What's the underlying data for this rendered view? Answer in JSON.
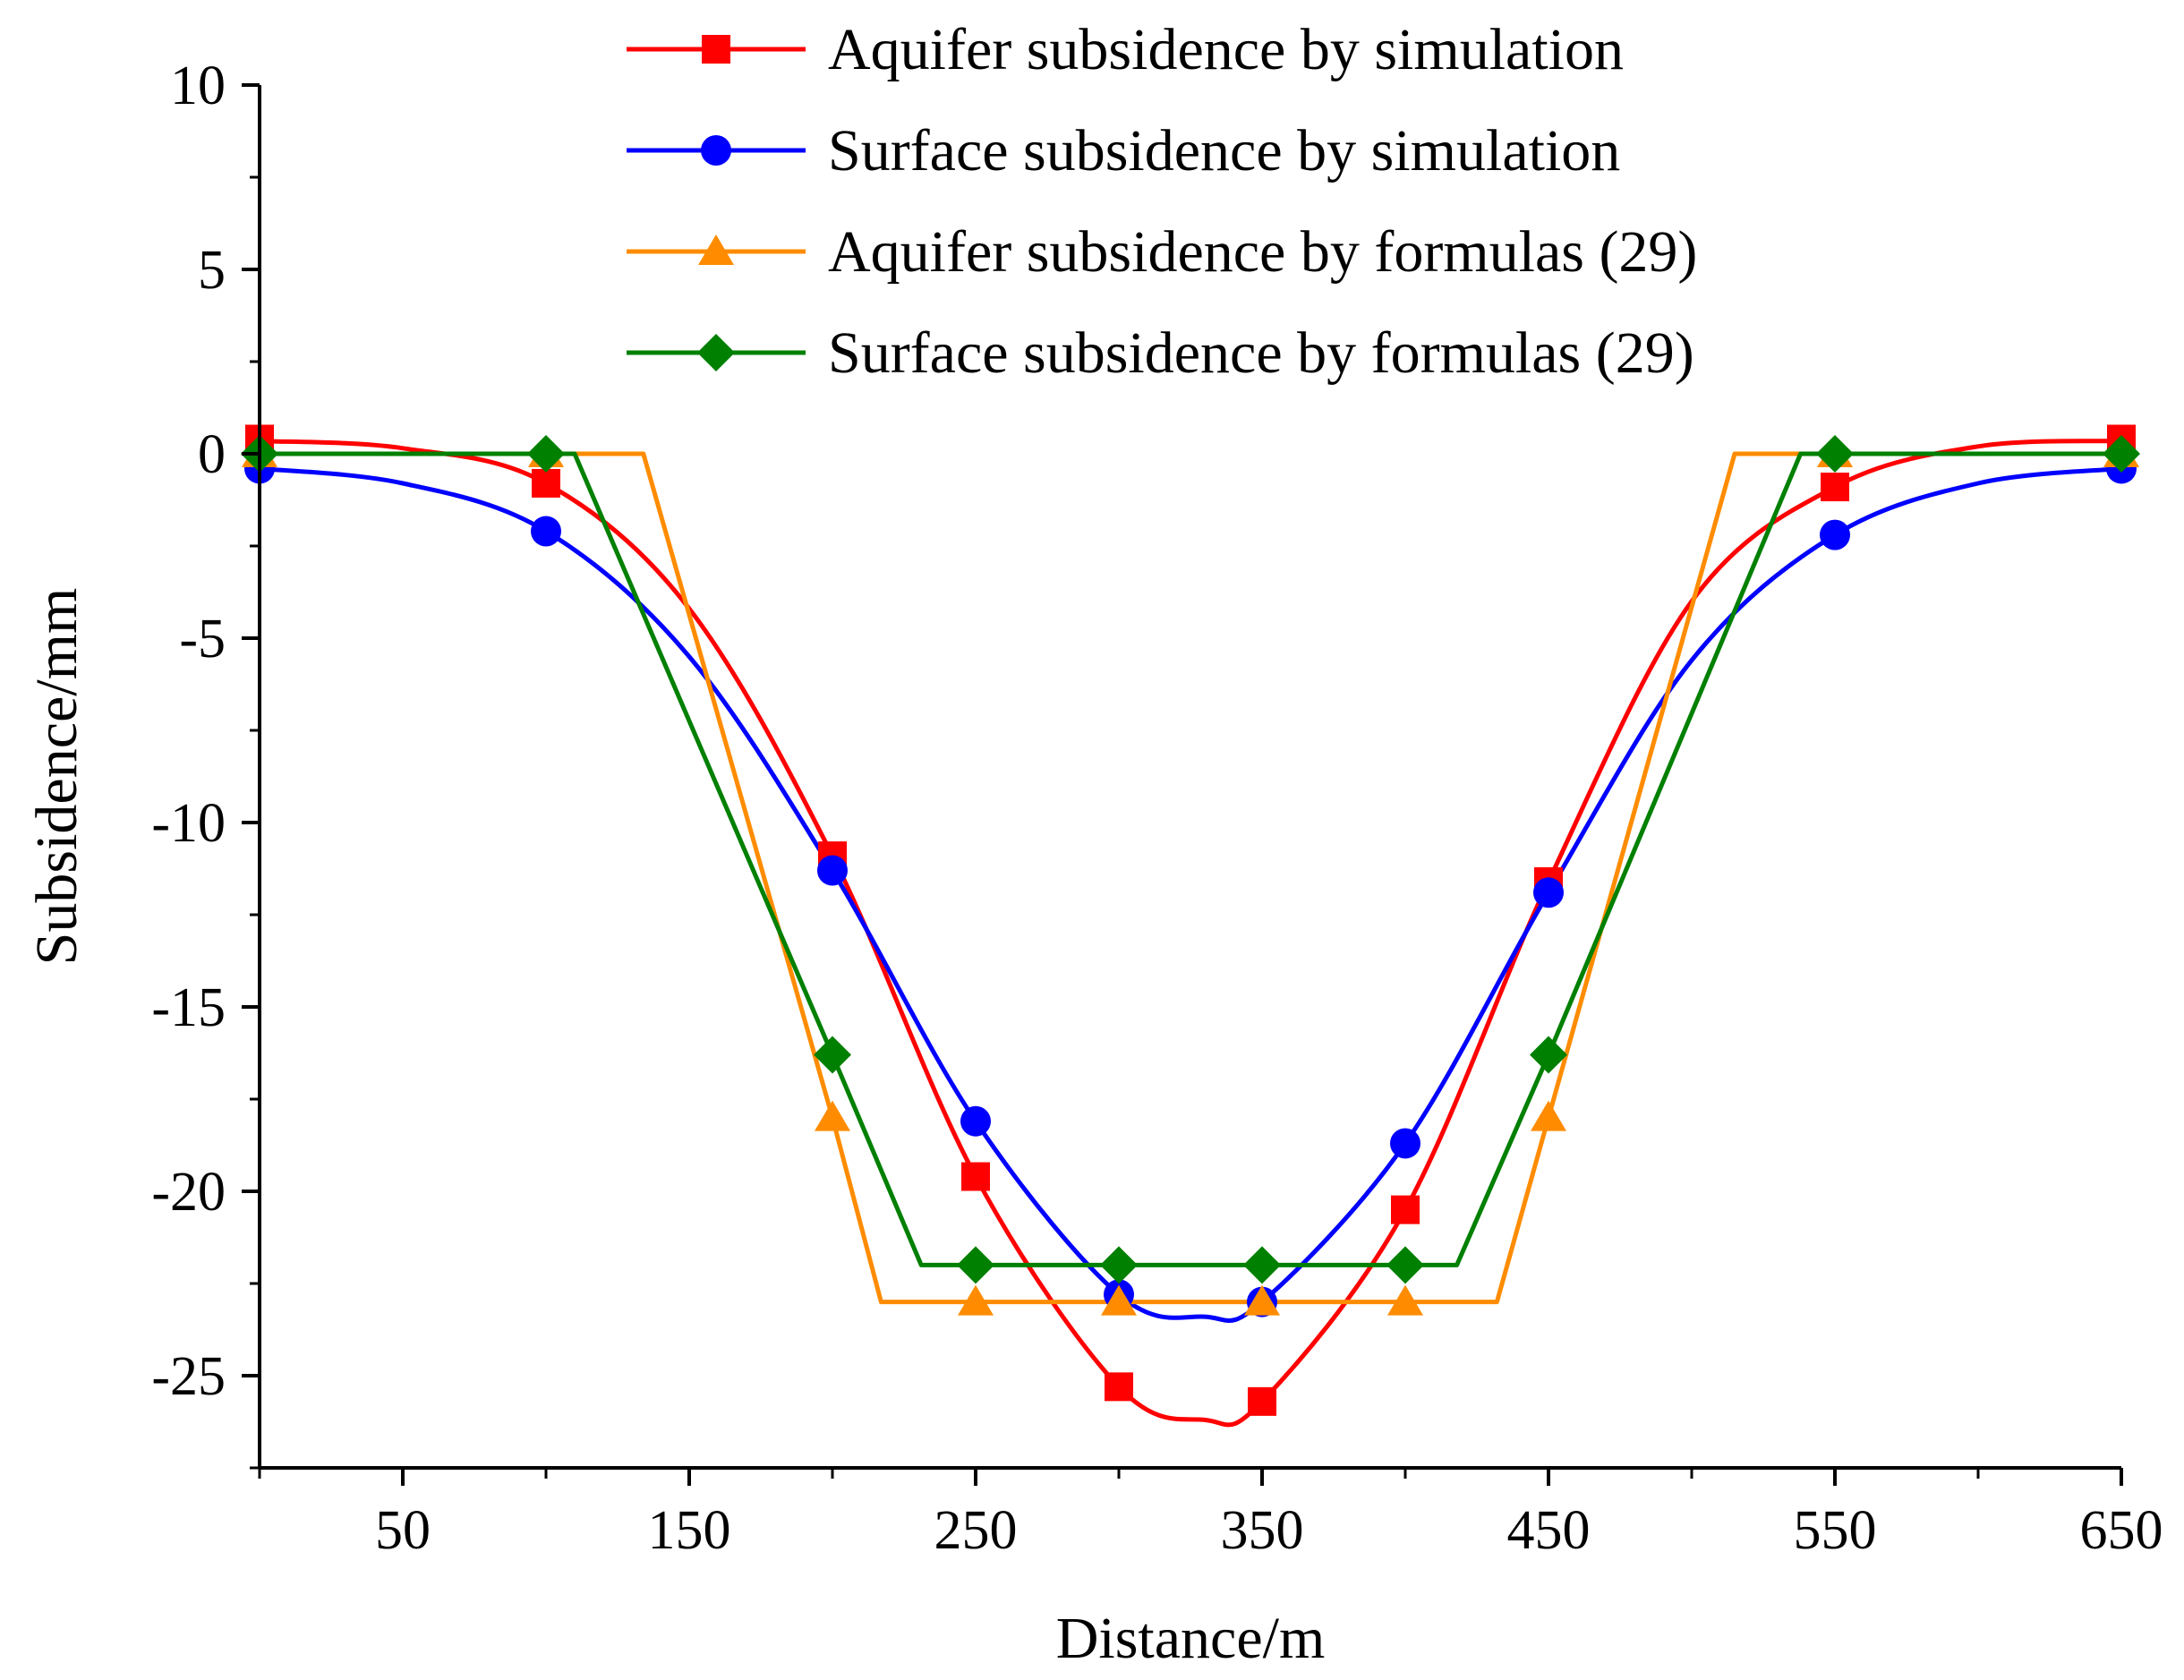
{
  "chart_data": {
    "type": "line",
    "title": "",
    "xlabel": "Distance/m",
    "ylabel": "Subsidence/mm",
    "xlim": [
      0,
      650
    ],
    "ylim": [
      -27.5,
      10
    ],
    "x_ticks": [
      "50",
      "150",
      "250",
      "350",
      "450",
      "550",
      "650"
    ],
    "y_ticks": [
      "10",
      "5",
      "0",
      "-5",
      "-10",
      "-15",
      "-20",
      "-25"
    ],
    "legend_position": "top-center",
    "grid": false,
    "series": [
      {
        "name": "Aquifer subsidence by simulation",
        "color": "#ff0000",
        "marker": "square",
        "smooth": true,
        "x": [
          0,
          100,
          200,
          250,
          300,
          350,
          400,
          450,
          550,
          650
        ],
        "y": [
          0.4,
          -0.8,
          -10.9,
          -19.6,
          -25.3,
          -25.7,
          -20.5,
          -11.6,
          -0.9,
          0.4
        ],
        "curve": [
          [
            0,
            0.35
          ],
          [
            50,
            0.15
          ],
          [
            100,
            -0.8
          ],
          [
            150,
            -4.2
          ],
          [
            200,
            -10.9
          ],
          [
            250,
            -19.6
          ],
          [
            300,
            -25.3
          ],
          [
            330,
            -26.2
          ],
          [
            350,
            -25.7
          ],
          [
            400,
            -20.5
          ],
          [
            450,
            -11.6
          ],
          [
            500,
            -4.0
          ],
          [
            550,
            -0.9
          ],
          [
            600,
            0.2
          ],
          [
            650,
            0.35
          ]
        ]
      },
      {
        "name": "Surface subsidence by simulation",
        "color": "#0000ff",
        "marker": "circle",
        "smooth": true,
        "x": [
          0,
          100,
          200,
          250,
          300,
          350,
          400,
          450,
          550,
          650
        ],
        "y": [
          -0.4,
          -2.1,
          -11.3,
          -18.1,
          -22.8,
          -23.0,
          -18.7,
          -11.9,
          -2.2,
          -0.4
        ],
        "curve": [
          [
            0,
            -0.4
          ],
          [
            50,
            -0.8
          ],
          [
            100,
            -2.1
          ],
          [
            150,
            -5.5
          ],
          [
            200,
            -11.3
          ],
          [
            250,
            -18.1
          ],
          [
            300,
            -22.8
          ],
          [
            330,
            -23.4
          ],
          [
            350,
            -23.0
          ],
          [
            400,
            -18.7
          ],
          [
            450,
            -11.9
          ],
          [
            500,
            -5.6
          ],
          [
            550,
            -2.2
          ],
          [
            600,
            -0.8
          ],
          [
            650,
            -0.4
          ]
        ]
      },
      {
        "name": "Aquifer subsidence by formulas (29)",
        "color": "#ff8c00",
        "marker": "triangle",
        "smooth": false,
        "x": [
          0,
          100,
          200,
          250,
          300,
          350,
          400,
          450,
          550,
          650
        ],
        "y": [
          0,
          0,
          -18.0,
          -23.0,
          -23.0,
          -23.0,
          -23.0,
          -18.0,
          0,
          0
        ],
        "curve": [
          [
            0,
            0
          ],
          [
            100,
            0
          ],
          [
            134,
            0
          ],
          [
            200,
            -18.0
          ],
          [
            217,
            -23.0
          ],
          [
            250,
            -23.0
          ],
          [
            300,
            -23.0
          ],
          [
            350,
            -23.0
          ],
          [
            400,
            -23.0
          ],
          [
            432,
            -23.0
          ],
          [
            450,
            -18.0
          ],
          [
            515,
            0
          ],
          [
            550,
            0
          ],
          [
            650,
            0
          ]
        ]
      },
      {
        "name": "Surface subsidence by formulas (29)",
        "color": "#008000",
        "marker": "diamond",
        "smooth": false,
        "x": [
          0,
          100,
          200,
          250,
          300,
          350,
          400,
          450,
          550,
          650
        ],
        "y": [
          0,
          0,
          -16.3,
          -22.0,
          -22.0,
          -22.0,
          -22.0,
          -16.3,
          0,
          0
        ],
        "curve": [
          [
            0,
            0
          ],
          [
            100,
            0
          ],
          [
            110,
            0
          ],
          [
            200,
            -16.3
          ],
          [
            231,
            -22.0
          ],
          [
            250,
            -22.0
          ],
          [
            300,
            -22.0
          ],
          [
            350,
            -22.0
          ],
          [
            400,
            -22.0
          ],
          [
            418,
            -22.0
          ],
          [
            450,
            -16.3
          ],
          [
            538,
            0
          ],
          [
            550,
            0
          ],
          [
            650,
            0
          ]
        ]
      }
    ]
  }
}
